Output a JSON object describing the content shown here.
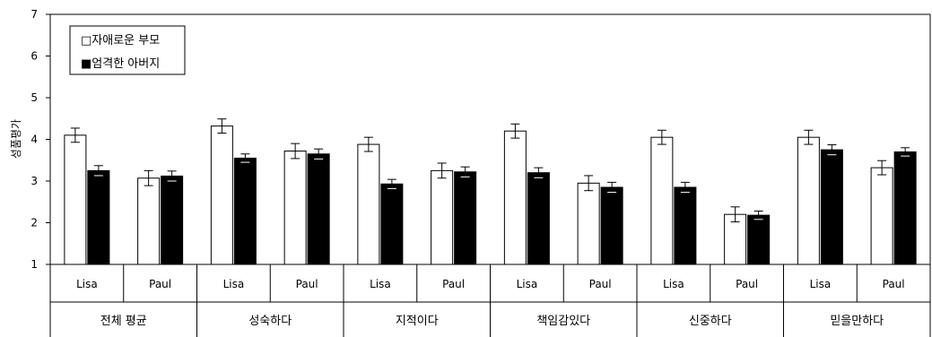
{
  "chart_data": {
    "type": "bar",
    "ylabel": "성품평가",
    "ylim": [
      1,
      7
    ],
    "yticks": [
      "1",
      "2",
      "3",
      "4",
      "5",
      "6",
      "7"
    ],
    "groups": [
      "전체 평균",
      "성숙하다",
      "지적이다",
      "책임감있다",
      "신중하다",
      "믿을만하다"
    ],
    "categories": [
      "Lisa",
      "Paul",
      "Lisa",
      "Paul",
      "Lisa",
      "Paul",
      "Lisa",
      "Paul",
      "Lisa",
      "Paul",
      "Lisa",
      "Paul"
    ],
    "series": [
      {
        "name": "자애로운 부모",
        "fill": "white",
        "values": [
          4.1,
          3.07,
          4.32,
          3.72,
          3.88,
          3.25,
          4.2,
          2.95,
          4.05,
          2.2,
          4.05,
          3.32
        ],
        "errors": [
          0.17,
          0.18,
          0.17,
          0.18,
          0.17,
          0.18,
          0.17,
          0.18,
          0.17,
          0.18,
          0.17,
          0.17
        ]
      },
      {
        "name": "엄격한 아버지",
        "fill": "black",
        "values": [
          3.25,
          3.12,
          3.55,
          3.65,
          2.93,
          3.22,
          3.2,
          2.85,
          2.85,
          2.18,
          3.75,
          3.7
        ],
        "errors": [
          0.12,
          0.12,
          0.1,
          0.12,
          0.11,
          0.12,
          0.12,
          0.12,
          0.12,
          0.1,
          0.12,
          0.1
        ]
      }
    ],
    "legend": {
      "position": "top-left",
      "items": [
        "□자애로운 부모",
        "■엄격한 아버지"
      ]
    },
    "grid": false,
    "colors": {
      "bar_outline": "#000000",
      "axis": "#000000",
      "background": "#ffffff"
    }
  }
}
